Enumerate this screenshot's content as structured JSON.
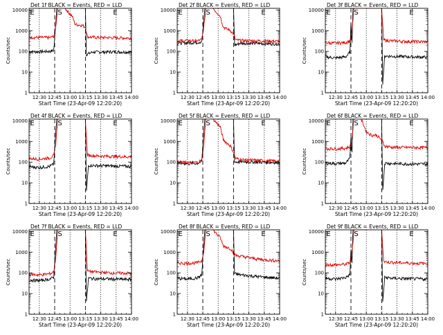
{
  "layout": {
    "rows": 3,
    "cols": 3
  },
  "shared": {
    "ylabel": "Counts/sec",
    "xlabel": "Start Time (23-Apr-09 12:20:20)",
    "x_tick_labels": [
      "12:30",
      "12:45",
      "13:00",
      "13:15",
      "13:30",
      "13:45",
      "14:00"
    ],
    "x_tick_minutes": [
      10,
      25,
      40,
      55,
      70,
      85,
      100
    ],
    "y_tick_labels": [
      "1",
      "10",
      "100",
      "1000",
      "10000"
    ],
    "y_tick_values": [
      1,
      10,
      100,
      1000,
      10000
    ],
    "xlim_minutes": [
      0,
      100
    ],
    "ylim": [
      1,
      12000
    ],
    "y_scale": "log",
    "dotted_lines_minutes": [
      10,
      40,
      70,
      85
    ],
    "dashed_lines_minutes": [
      25,
      55
    ],
    "marker_letters": [
      "E",
      "S",
      "E"
    ],
    "marker_positions_minutes": [
      -1,
      28,
      82
    ],
    "events_color": "#000000",
    "lld_color": "#e00000"
  },
  "chart_data": [
    {
      "type": "line",
      "title": "Det 1f BLACK = Events, RED = LLD",
      "series": [
        {
          "name": "Events",
          "color": "#000000",
          "x": [
            0,
            10,
            20,
            24,
            25,
            27,
            40,
            53,
            55,
            56,
            62,
            80,
            100
          ],
          "y": [
            95,
            97,
            100,
            110,
            400,
            12000,
            12000,
            12000,
            12000,
            70,
            92,
            95,
            93
          ]
        },
        {
          "name": "LLD",
          "color": "#e00000",
          "x": [
            0,
            10,
            20,
            24,
            26,
            28,
            35,
            42,
            45,
            52,
            55,
            57,
            65,
            80,
            100
          ],
          "y": [
            480,
            470,
            460,
            520,
            1500,
            12000,
            12000,
            5000,
            2000,
            1800,
            1500,
            500,
            470,
            460,
            440
          ]
        }
      ]
    },
    {
      "type": "line",
      "title": "Det 2f BLACK = Events, RED = LLD",
      "series": [
        {
          "name": "Events",
          "color": "#000000",
          "x": [
            0,
            10,
            20,
            24,
            25,
            27,
            40,
            53,
            55,
            56,
            62,
            80,
            100
          ],
          "y": [
            250,
            260,
            270,
            300,
            900,
            12000,
            12000,
            12000,
            12000,
            200,
            250,
            240,
            230
          ]
        },
        {
          "name": "LLD",
          "color": "#e00000",
          "x": [
            0,
            10,
            20,
            24,
            26,
            28,
            35,
            42,
            45,
            52,
            55,
            57,
            65,
            80,
            100
          ],
          "y": [
            320,
            330,
            320,
            380,
            1500,
            12000,
            12000,
            5000,
            1500,
            1000,
            700,
            350,
            330,
            320,
            310
          ]
        }
      ]
    },
    {
      "type": "line",
      "title": "Det 3f BLACK = Events, RED = LLD",
      "series": [
        {
          "name": "Events",
          "color": "#000000",
          "x": [
            0,
            10,
            20,
            24,
            25,
            26,
            27,
            55,
            56,
            58,
            65,
            80,
            100
          ],
          "y": [
            55,
            48,
            55,
            90,
            2000,
            300,
            12000,
            12000,
            3,
            60,
            58,
            55,
            52
          ]
        },
        {
          "name": "LLD",
          "color": "#e00000",
          "x": [
            0,
            10,
            20,
            24,
            26,
            28,
            54,
            55,
            57,
            65,
            80,
            100
          ],
          "y": [
            260,
            250,
            270,
            320,
            900,
            12000,
            12000,
            12000,
            350,
            320,
            300,
            290
          ]
        }
      ]
    },
    {
      "type": "line",
      "title": "Det 4f BLACK = Events, RED = LLD",
      "series": [
        {
          "name": "Events",
          "color": "#000000",
          "x": [
            0,
            10,
            20,
            24,
            25,
            27,
            54,
            55,
            56,
            58,
            65,
            80,
            100
          ],
          "y": [
            60,
            55,
            62,
            80,
            500,
            12000,
            12000,
            12000,
            4,
            70,
            68,
            65,
            62
          ]
        },
        {
          "name": "LLD",
          "color": "#e00000",
          "x": [
            0,
            10,
            20,
            24,
            26,
            28,
            54,
            55,
            57,
            65,
            80,
            100
          ],
          "y": [
            150,
            140,
            160,
            200,
            700,
            12000,
            12000,
            12000,
            220,
            200,
            190,
            180
          ]
        }
      ]
    },
    {
      "type": "line",
      "title": "Det 5f BLACK = Events, RED = LLD",
      "series": [
        {
          "name": "Events",
          "color": "#000000",
          "x": [
            0,
            10,
            20,
            24,
            25,
            27,
            40,
            53,
            55,
            56,
            62,
            80,
            100
          ],
          "y": [
            90,
            85,
            88,
            110,
            600,
            12000,
            12000,
            12000,
            12000,
            100,
            105,
            100,
            95
          ]
        },
        {
          "name": "LLD",
          "color": "#e00000",
          "x": [
            0,
            10,
            20,
            24,
            26,
            28,
            35,
            42,
            45,
            52,
            55,
            57,
            65,
            80,
            100
          ],
          "y": [
            100,
            95,
            98,
            120,
            700,
            12000,
            12000,
            5000,
            1200,
            600,
            300,
            150,
            130,
            120,
            110
          ]
        }
      ]
    },
    {
      "type": "line",
      "title": "Det 6f BLACK = Events, RED = LLD",
      "series": [
        {
          "name": "Events",
          "color": "#000000",
          "x": [
            0,
            10,
            20,
            24,
            25,
            26,
            27,
            55,
            56,
            58,
            65,
            80,
            100
          ],
          "y": [
            90,
            85,
            90,
            150,
            1500,
            300,
            12000,
            12000,
            4,
            90,
            85,
            82,
            80
          ]
        },
        {
          "name": "LLD",
          "color": "#e00000",
          "x": [
            0,
            10,
            20,
            24,
            26,
            28,
            35,
            40,
            45,
            50,
            55,
            58,
            65,
            80,
            100
          ],
          "y": [
            450,
            440,
            470,
            550,
            1500,
            12000,
            12000,
            3000,
            2000,
            2000,
            1200,
            600,
            520,
            510,
            500
          ]
        }
      ]
    },
    {
      "type": "line",
      "title": "Det 7f BLACK = Events, RED = LLD",
      "series": [
        {
          "name": "Events",
          "color": "#000000",
          "x": [
            0,
            10,
            20,
            24,
            25,
            27,
            54,
            55,
            56,
            58,
            65,
            80,
            100
          ],
          "y": [
            45,
            42,
            50,
            60,
            300,
            12000,
            12000,
            12000,
            4,
            55,
            52,
            50,
            48
          ]
        },
        {
          "name": "LLD",
          "color": "#e00000",
          "x": [
            0,
            10,
            20,
            24,
            26,
            28,
            54,
            55,
            57,
            65,
            80,
            100
          ],
          "y": [
            85,
            80,
            90,
            110,
            500,
            12000,
            12000,
            12000,
            120,
            110,
            100,
            95
          ]
        }
      ]
    },
    {
      "type": "line",
      "title": "Det 8f BLACK = Events, RED = LLD",
      "series": [
        {
          "name": "Events",
          "color": "#000000",
          "x": [
            0,
            10,
            20,
            24,
            25,
            27,
            40,
            53,
            55,
            56,
            62,
            80,
            100
          ],
          "y": [
            55,
            50,
            58,
            80,
            500,
            12000,
            12000,
            12000,
            12000,
            90,
            80,
            65,
            55
          ]
        },
        {
          "name": "LLD",
          "color": "#e00000",
          "x": [
            0,
            10,
            20,
            24,
            26,
            28,
            35,
            42,
            45,
            52,
            55,
            57,
            65,
            80,
            100
          ],
          "y": [
            300,
            290,
            310,
            380,
            1200,
            12000,
            12000,
            5000,
            2000,
            1500,
            1000,
            700,
            600,
            450,
            380
          ]
        }
      ]
    },
    {
      "type": "line",
      "title": "Det 9f BLACK = Events, RED = LLD",
      "series": [
        {
          "name": "Events",
          "color": "#000000",
          "x": [
            0,
            10,
            20,
            24,
            25,
            26,
            27,
            55,
            56,
            58,
            65,
            80,
            100
          ],
          "y": [
            55,
            50,
            60,
            80,
            1500,
            300,
            12000,
            12000,
            4,
            60,
            55,
            52,
            50
          ]
        },
        {
          "name": "LLD",
          "color": "#e00000",
          "x": [
            0,
            10,
            20,
            24,
            26,
            28,
            54,
            55,
            57,
            65,
            80,
            100
          ],
          "y": [
            250,
            240,
            260,
            320,
            1000,
            12000,
            12000,
            12000,
            350,
            320,
            300,
            280
          ]
        }
      ]
    }
  ]
}
